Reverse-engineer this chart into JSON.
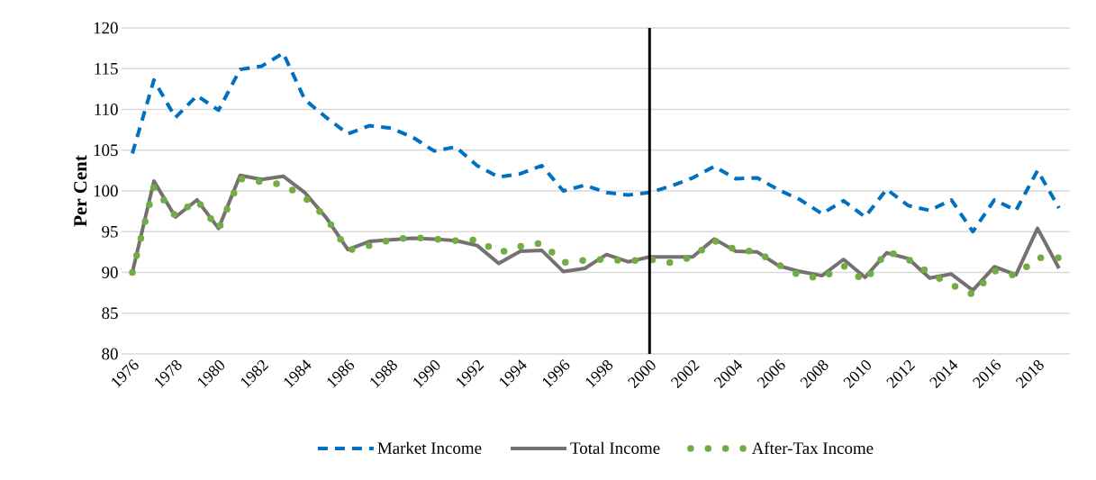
{
  "chart_data": {
    "type": "line",
    "ylabel": "Per Cent",
    "x": [
      1976,
      1977,
      1978,
      1979,
      1980,
      1981,
      1982,
      1983,
      1984,
      1985,
      1986,
      1987,
      1988,
      1989,
      1990,
      1991,
      1992,
      1993,
      1994,
      1995,
      1996,
      1997,
      1998,
      1999,
      2000,
      2001,
      2002,
      2003,
      2004,
      2005,
      2006,
      2007,
      2008,
      2009,
      2010,
      2011,
      2012,
      2013,
      2014,
      2015,
      2016,
      2017,
      2018,
      2019
    ],
    "series": [
      {
        "name": "Market Income",
        "color": "#0070c0",
        "line_style": "dashed",
        "values": [
          104.6,
          113.6,
          109.0,
          111.7,
          109.9,
          114.9,
          115.3,
          116.9,
          111.2,
          109.0,
          107.0,
          108.0,
          107.7,
          106.6,
          104.9,
          105.4,
          103.1,
          101.7,
          102.1,
          103.1,
          100.0,
          100.7,
          99.8,
          99.5,
          99.8,
          100.6,
          101.6,
          103.0,
          101.5,
          101.6,
          100.1,
          98.9,
          97.2,
          98.8,
          96.8,
          100.2,
          98.2,
          97.6,
          98.9,
          95.0,
          98.9,
          97.6,
          102.5,
          97.9
        ]
      },
      {
        "name": "Total Income",
        "color": "#767171",
        "line_style": "solid",
        "values": [
          90.0,
          101.2,
          96.8,
          98.9,
          95.4,
          101.9,
          101.4,
          101.8,
          99.8,
          96.7,
          92.8,
          93.8,
          94.0,
          94.2,
          94.1,
          93.9,
          93.3,
          91.1,
          92.6,
          92.7,
          90.1,
          90.5,
          92.2,
          91.3,
          91.9,
          91.9,
          91.9,
          94.1,
          92.6,
          92.5,
          90.8,
          90.1,
          89.6,
          91.6,
          89.4,
          92.4,
          91.7,
          89.3,
          89.8,
          87.8,
          90.7,
          89.7,
          95.4,
          90.5
        ]
      },
      {
        "name": "After-Tax Income",
        "color": "#70ad47",
        "line_style": "dotted",
        "values": [
          90.0,
          100.5,
          96.9,
          98.9,
          95.3,
          101.5,
          101.1,
          100.8,
          99.2,
          96.7,
          92.7,
          93.3,
          94.0,
          94.3,
          94.1,
          93.9,
          94.0,
          92.4,
          93.2,
          93.6,
          91.2,
          91.5,
          91.6,
          91.4,
          91.6,
          91.2,
          91.9,
          93.9,
          92.8,
          92.5,
          90.9,
          89.6,
          89.3,
          90.8,
          88.9,
          92.6,
          91.6,
          89.9,
          88.5,
          87.3,
          90.2,
          89.6,
          91.8,
          91.8
        ]
      }
    ],
    "xlim": [
      1975.5,
      2019.5
    ],
    "xticks": [
      1976,
      1978,
      1980,
      1982,
      1984,
      1986,
      1988,
      1990,
      1992,
      1994,
      1996,
      1998,
      2000,
      2002,
      2004,
      2006,
      2008,
      2010,
      2012,
      2014,
      2016,
      2018
    ],
    "ylim": [
      80,
      120
    ],
    "yticks": [
      80,
      85,
      90,
      95,
      100,
      105,
      110,
      115,
      120
    ],
    "ref_lines": [
      {
        "axis": "x",
        "value": 2000,
        "color": "#000000"
      }
    ],
    "grid": "y",
    "legend": "bottom",
    "marker": "none"
  }
}
